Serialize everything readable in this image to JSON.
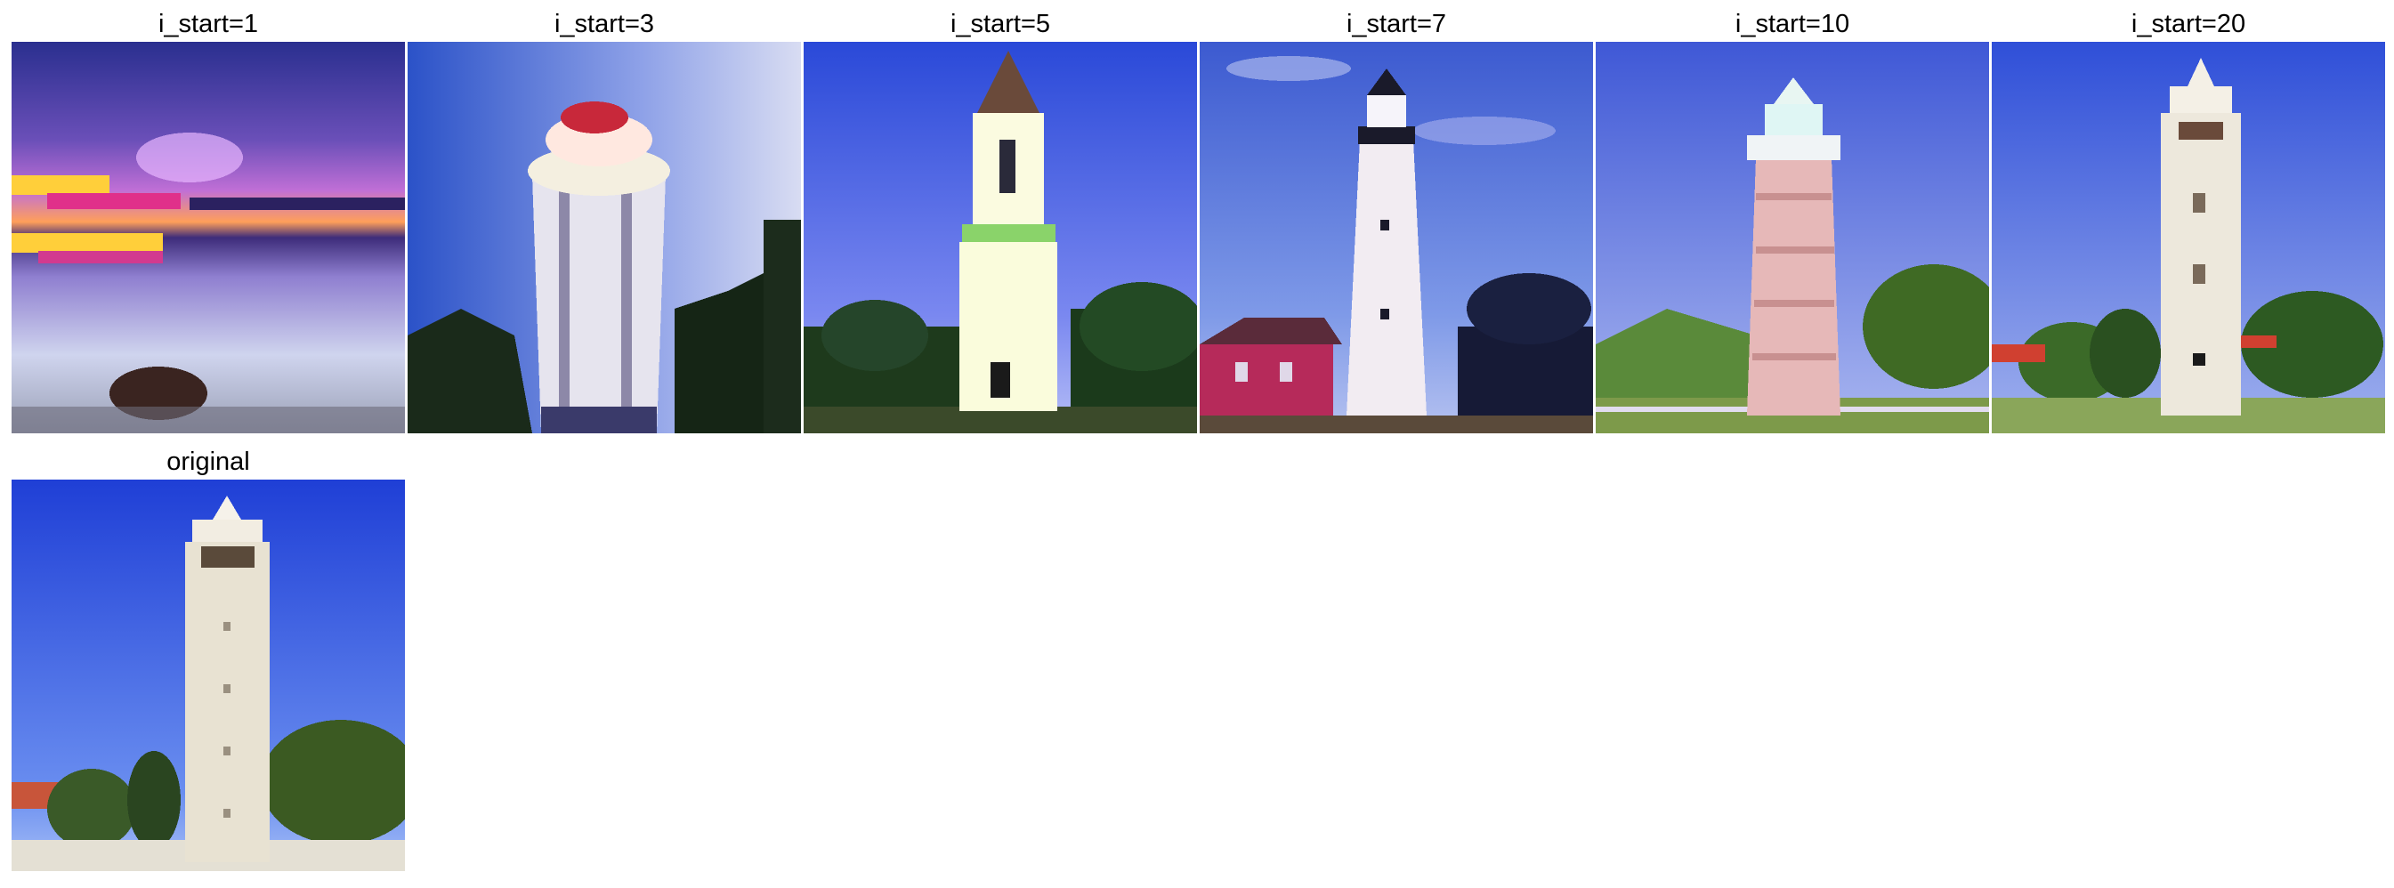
{
  "panels": [
    {
      "caption": "i_start=1",
      "scene": "sunset-lake"
    },
    {
      "caption": "i_start=3",
      "scene": "round-tower"
    },
    {
      "caption": "i_start=5",
      "scene": "white-church-tower"
    },
    {
      "caption": "i_start=7",
      "scene": "lighthouse-red-house"
    },
    {
      "caption": "i_start=10",
      "scene": "striped-lighthouse"
    },
    {
      "caption": "i_start=20",
      "scene": "bell-tower"
    },
    {
      "caption": "original",
      "scene": "campanile-original"
    }
  ]
}
